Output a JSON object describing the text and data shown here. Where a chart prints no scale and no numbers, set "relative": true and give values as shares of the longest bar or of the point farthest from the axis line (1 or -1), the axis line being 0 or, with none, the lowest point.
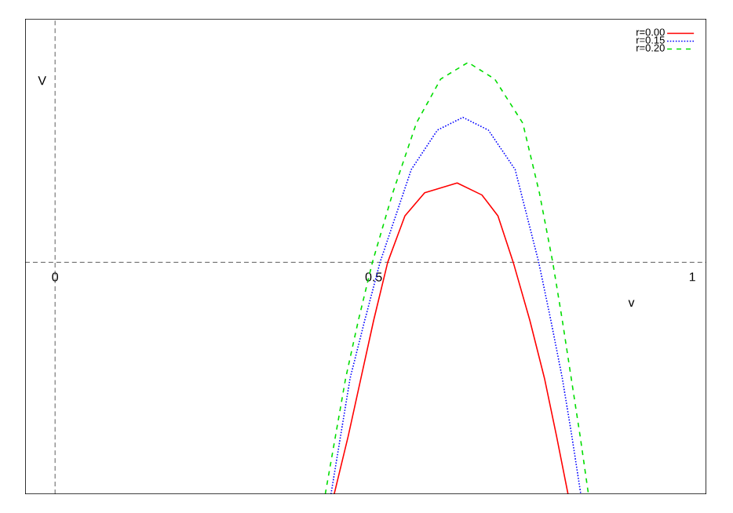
{
  "chart_data": {
    "type": "line",
    "relative": true,
    "xlabel": "v",
    "ylabel": "V",
    "xlim": [
      -0.047,
      1.022
    ],
    "xticks": [
      0,
      0.5,
      1
    ],
    "legend": "top right",
    "marker": "none",
    "series": [
      {
        "name": "r=0.00",
        "color": "#ff0000",
        "line_style": "solid",
        "x": [
          0.438,
          0.46,
          0.48,
          0.5,
          0.522,
          0.549,
          0.58,
          0.631,
          0.67,
          0.695,
          0.719,
          0.745,
          0.768,
          0.787,
          0.805
        ],
        "values": [
          -1,
          -0.75,
          -0.5,
          -0.25,
          0,
          0.2,
          0.3,
          0.342,
          0.29,
          0.2,
          0,
          -0.25,
          -0.5,
          -0.75,
          -1
        ]
      },
      {
        "name": "r=0.15",
        "color": "#0000ff",
        "line_style": "dotted",
        "x": [
          0.433,
          0.448,
          0.463,
          0.486,
          0.51,
          0.559,
          0.6,
          0.64,
          0.68,
          0.722,
          0.759,
          0.778,
          0.796,
          0.811,
          0.825
        ],
        "values": [
          -1,
          -0.75,
          -0.5,
          -0.25,
          0,
          0.4,
          0.57,
          0.625,
          0.57,
          0.4,
          0,
          -0.25,
          -0.5,
          -0.75,
          -1
        ]
      },
      {
        "name": "r=0.20",
        "color": "#00dd00",
        "line_style": "dashed",
        "x": [
          0.424,
          0.44,
          0.456,
          0.476,
          0.498,
          0.53,
          0.567,
          0.605,
          0.648,
          0.69,
          0.734,
          0.76,
          0.781,
          0.796,
          0.81,
          0.824,
          0.837
        ],
        "values": [
          -1,
          -0.75,
          -0.5,
          -0.25,
          0,
          0.3,
          0.6,
          0.79,
          0.862,
          0.79,
          0.6,
          0.3,
          0,
          -0.25,
          -0.5,
          -0.75,
          -1
        ]
      }
    ]
  }
}
